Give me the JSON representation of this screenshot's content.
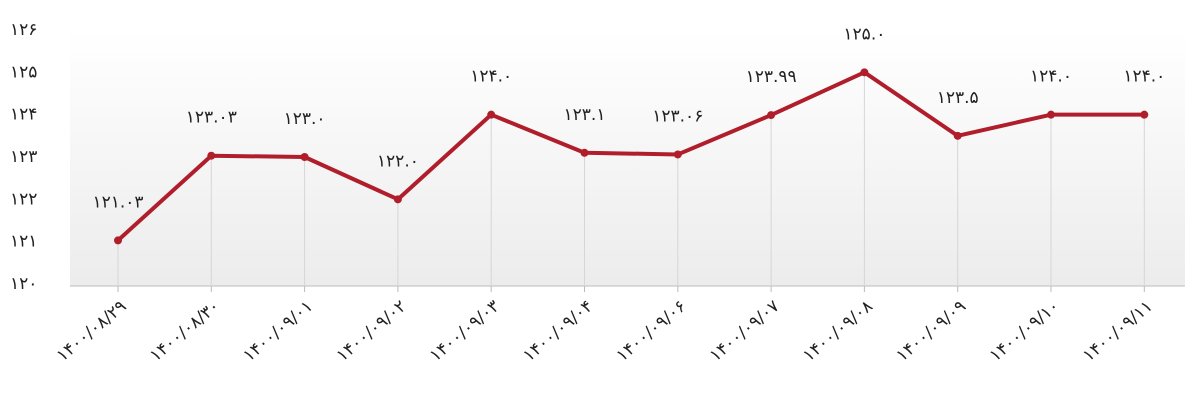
{
  "chart_data": {
    "type": "line",
    "categories": [
      "۱۴۰۰/۰۸/۲۹",
      "۱۴۰۰/۰۸/۳۰",
      "۱۴۰۰/۰۹/۰۱",
      "۱۴۰۰/۰۹/۰۲",
      "۱۴۰۰/۰۹/۰۳",
      "۱۴۰۰/۰۹/۰۴",
      "۱۴۰۰/۰۹/۰۶",
      "۱۴۰۰/۰۹/۰۷",
      "۱۴۰۰/۰۹/۰۸",
      "۱۴۰۰/۰۹/۰۹",
      "۱۴۰۰/۰۹/۱۰",
      "۱۴۰۰/۰۹/۱۱"
    ],
    "values": [
      121.03,
      123.03,
      123.0,
      122.0,
      124.0,
      123.1,
      123.06,
      123.99,
      125.0,
      123.5,
      124.0,
      124.0
    ],
    "value_labels": [
      "۱۲۱.۰۳",
      "۱۲۳.۰۳",
      "۱۲۳.۰",
      "۱۲۲.۰",
      "۱۲۴.۰",
      "۱۲۳.۱",
      "۱۲۳.۰۶",
      "۱۲۳.۹۹",
      "۱۲۵.۰",
      "۱۲۳.۵",
      "۱۲۴.۰",
      "۱۲۴.۰"
    ],
    "color": "#b01e2c",
    "ylim": [
      120,
      126
    ],
    "yticks": [
      {
        "value": 120,
        "label": "۱۲۰"
      },
      {
        "value": 121,
        "label": "۱۲۱"
      },
      {
        "value": 122,
        "label": "۱۲۲"
      },
      {
        "value": 123,
        "label": "۱۲۳"
      },
      {
        "value": 124,
        "label": "۱۲۴"
      },
      {
        "value": 125,
        "label": "۱۲۵"
      },
      {
        "value": 126,
        "label": "۱۲۶"
      }
    ]
  }
}
